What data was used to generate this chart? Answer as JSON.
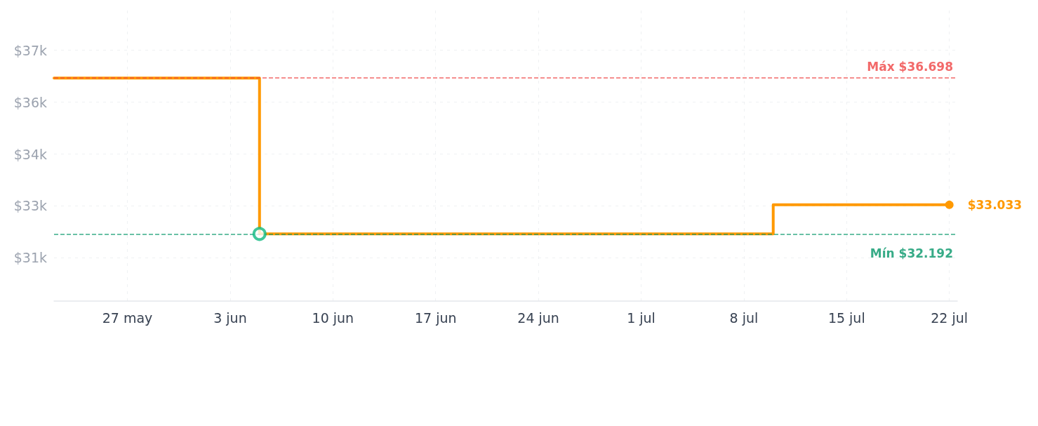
{
  "chart_data": {
    "type": "step",
    "x": [
      "--05-22",
      "--06-05",
      "--07-10",
      "--07-22"
    ],
    "series": [
      {
        "color": "#ff9900",
        "values": [
          36698,
          32192,
          33033,
          33033
        ]
      },
      {
        "type": "scatter",
        "color": "#10b981",
        "marker": "circle",
        "x": [
          "--06-05"
        ],
        "values": [
          32192
        ]
      }
    ],
    "xlim": [
      "--05-22",
      "--07-22T13:00"
    ],
    "xticks": [
      {
        "value": "--05-27",
        "label": "27 may"
      },
      {
        "value": "--06-03",
        "label": "3 jun"
      },
      {
        "value": "--06-10",
        "label": "10 jun"
      },
      {
        "value": "--06-17",
        "label": "17 jun"
      },
      {
        "value": "--06-24",
        "label": "24 jun"
      },
      {
        "value": "--07-01",
        "label": "1 jul"
      },
      {
        "value": "--07-08",
        "label": "8 jul"
      },
      {
        "value": "--07-15",
        "label": "15 jul"
      },
      {
        "value": "--07-22",
        "label": "22 jul"
      }
    ],
    "ylim": [
      30250,
      38650
    ],
    "yticks": [
      {
        "value": 31500,
        "label": "$31k"
      },
      {
        "value": 33000,
        "label": "$33k"
      },
      {
        "value": 34500,
        "label": "$34k"
      },
      {
        "value": 36000,
        "label": "$36k"
      },
      {
        "value": 37500,
        "label": "$37k"
      }
    ],
    "ref_lines": [
      {
        "axis": "y",
        "value": 36698,
        "label": "Máx $36.698",
        "color": "#ef4444",
        "line_style": "dashed"
      },
      {
        "axis": "y",
        "value": 32192,
        "label": "Mín $32.192",
        "color": "#059669",
        "line_style": "dashed"
      }
    ],
    "annotations": [
      {
        "text": "$33.033",
        "x": "--07-22",
        "y": 33033
      }
    ],
    "grid": true,
    "line_style": "solid"
  }
}
